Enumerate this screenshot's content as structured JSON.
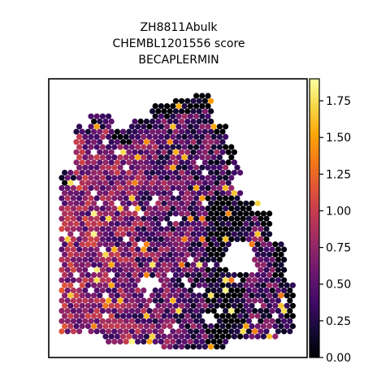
{
  "chart_data": {
    "type": "heatmap",
    "title_lines": [
      "ZH8811Abulk",
      "CHEMBL1201556 score",
      "BECAPLERMIN"
    ],
    "xlabel": "",
    "ylabel": "",
    "grid": false,
    "colormap": "inferno",
    "colorbar": {
      "min": 0.0,
      "max": 1.9,
      "ticks": [
        0.0,
        0.25,
        0.5,
        0.75,
        1.0,
        1.25,
        1.5,
        1.75
      ],
      "tick_labels": [
        "0.00",
        "0.25",
        "0.50",
        "0.75",
        "1.00",
        "1.25",
        "1.50",
        "1.75"
      ]
    },
    "spots": {
      "description_free": true,
      "value_range": [
        0.0,
        1.9
      ]
    }
  }
}
